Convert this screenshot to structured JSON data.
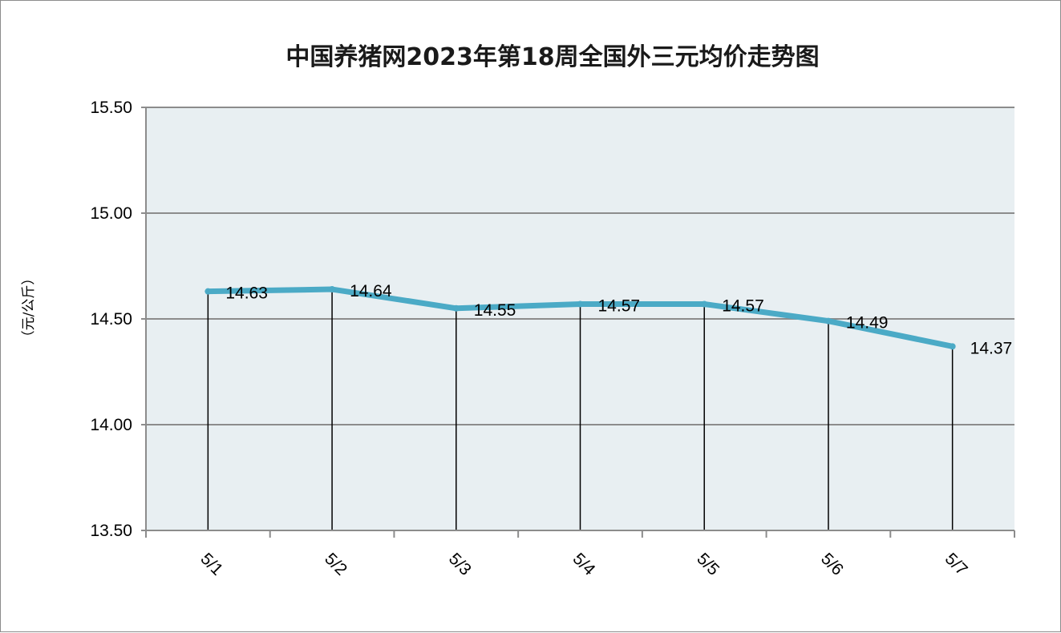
{
  "chart_data": {
    "type": "line",
    "title": "中国养猪网2023年第18周全国外三元均价走势图",
    "xlabel": "",
    "ylabel": "（元/公斤）",
    "categories": [
      "5/1",
      "5/2",
      "5/3",
      "5/4",
      "5/5",
      "5/6",
      "5/7"
    ],
    "series": [
      {
        "values": [
          14.63,
          14.64,
          14.55,
          14.57,
          14.57,
          14.49,
          14.37
        ]
      }
    ],
    "data_labels": [
      "14.63",
      "14.64",
      "14.55",
      "14.57",
      "14.57",
      "14.49",
      "14.37"
    ],
    "yticks": [
      "13.50",
      "14.00",
      "14.50",
      "15.00",
      "15.50"
    ],
    "ylim": [
      13.5,
      15.5
    ],
    "grid": true,
    "drop_lines": true,
    "legend": "none",
    "colors": {
      "line": "#4baac6",
      "plot_background": "#e8eff2",
      "gridline": "#8c8c8c",
      "drop_line": "#000000"
    }
  }
}
